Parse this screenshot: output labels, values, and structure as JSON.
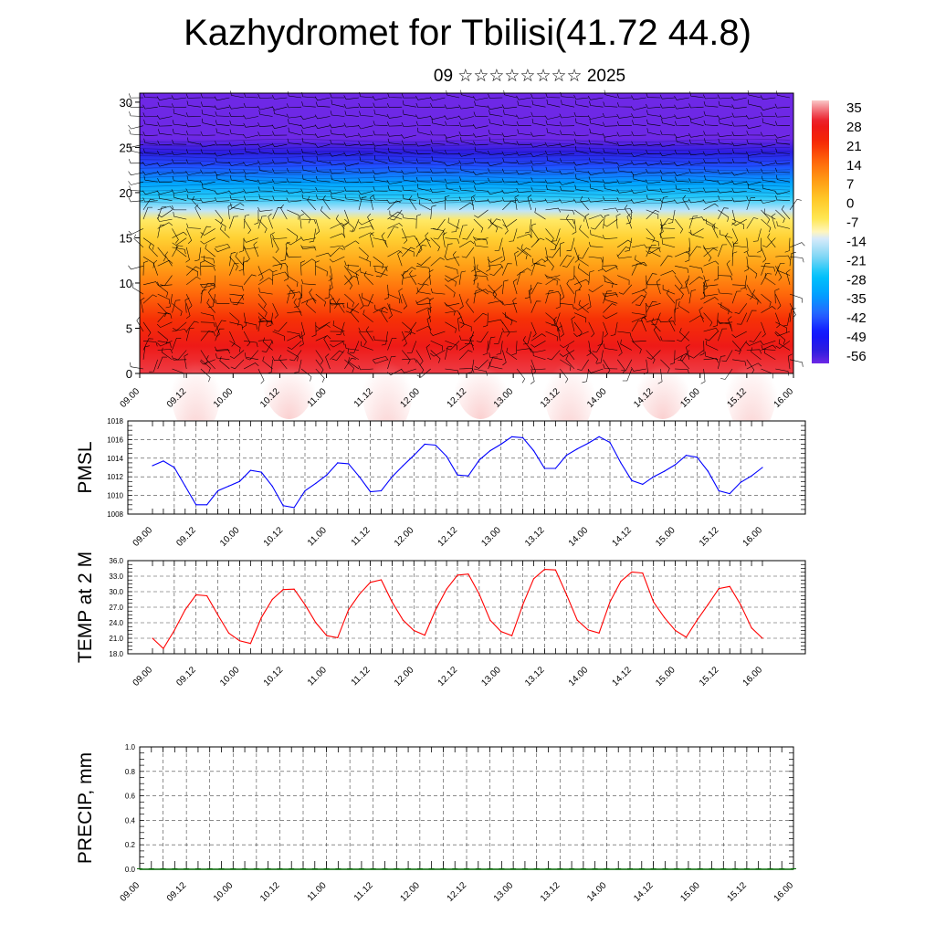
{
  "header": {
    "title": "Kazhydromet for Tbilisi(41.72 44.8)",
    "subtitle": "09 ☆☆☆☆☆☆☆☆ 2025"
  },
  "chart_data": [
    {
      "type": "heatmap",
      "title": "",
      "xlabel": "",
      "ylabel": "",
      "x_tick_labels": [
        "09.00",
        "09.12",
        "10.00",
        "10.12",
        "11.00",
        "11.12",
        "12.00",
        "12.12",
        "13.00",
        "13.12",
        "14.00",
        "14.12",
        "15.00",
        "15.12",
        "16.00"
      ],
      "y_ticks": [
        0,
        5,
        10,
        15,
        20,
        25,
        30
      ],
      "ylim": [
        0,
        31
      ],
      "colorbar_labels": [
        "35",
        "28",
        "21",
        "14",
        "7",
        "0",
        "-7",
        "-14",
        "-21",
        "-28",
        "-35",
        "-42",
        "-49",
        "-56"
      ],
      "colorbar_range": [
        -60,
        36
      ],
      "overlay": "wind barbs",
      "profile": [
        {
          "level": 0,
          "value": 30
        },
        {
          "level": 3,
          "value": 26
        },
        {
          "level": 6,
          "value": 20
        },
        {
          "level": 9,
          "value": 13
        },
        {
          "level": 12,
          "value": 6
        },
        {
          "level": 15,
          "value": -2
        },
        {
          "level": 17,
          "value": -8
        },
        {
          "level": 18,
          "value": -16
        },
        {
          "level": 19.5,
          "value": -26
        },
        {
          "level": 21,
          "value": -34
        },
        {
          "level": 23,
          "value": -44
        },
        {
          "level": 24.5,
          "value": -55
        },
        {
          "level": 26,
          "value": -60
        },
        {
          "level": 31,
          "value": -60
        }
      ]
    },
    {
      "type": "line",
      "title": "",
      "xlabel": "",
      "ylabel": "PMSL",
      "ylim": [
        1008,
        1018
      ],
      "y_tick_labels": [
        "1018",
        "1016",
        "1014",
        "1012",
        "1010",
        "1008"
      ],
      "x_tick_labels": [
        "09.00",
        "09.12",
        "10.00",
        "10.12",
        "11.00",
        "11.12",
        "12.00",
        "12.12",
        "13.00",
        "13.12",
        "14.00",
        "14.12",
        "15.00",
        "15.12",
        "16.00"
      ],
      "x": [
        0,
        3,
        6,
        9,
        12,
        15,
        18,
        21,
        24,
        27,
        30,
        33,
        36,
        39,
        42,
        45,
        48,
        51,
        54,
        57,
        60,
        63,
        66,
        69,
        72,
        75,
        78,
        81,
        84,
        87,
        90,
        93,
        96,
        99,
        102,
        105,
        108,
        111,
        114,
        117,
        120,
        123,
        126,
        129,
        132,
        135,
        138,
        141,
        144,
        147,
        150,
        153,
        156,
        159,
        162,
        165,
        168
      ],
      "series": [
        {
          "name": "",
          "color": "#0000ff",
          "values": [
            1013.2,
            1013.7,
            1013.0,
            1011.0,
            1009.0,
            1009.0,
            1010.5,
            1011.0,
            1011.5,
            1012.7,
            1012.5,
            1011.0,
            1008.9,
            1008.7,
            1010.5,
            1011.3,
            1012.2,
            1013.5,
            1013.4,
            1012.0,
            1010.4,
            1010.5,
            1012.0,
            1013.2,
            1014.3,
            1015.5,
            1015.4,
            1014.2,
            1012.2,
            1012.1,
            1013.8,
            1014.8,
            1015.5,
            1016.3,
            1016.2,
            1014.8,
            1012.9,
            1012.9,
            1014.3,
            1015.0,
            1015.6,
            1016.3,
            1015.7,
            1013.5,
            1011.6,
            1011.2,
            1012.0,
            1012.6,
            1013.3,
            1014.3,
            1014.1,
            1012.6,
            1010.5,
            1010.2,
            1011.4,
            1012.1,
            1013.0
          ]
        }
      ]
    },
    {
      "type": "line",
      "title": "",
      "xlabel": "",
      "ylabel": "TEMP at 2 M",
      "ylim": [
        18,
        36
      ],
      "y_tick_labels": [
        "36.0",
        "33.0",
        "30.0",
        "27.0",
        "24.0",
        "21.0",
        "18.0"
      ],
      "x_tick_labels": [
        "09.00",
        "09.12",
        "10.00",
        "10.12",
        "11.00",
        "11.12",
        "12.00",
        "12.12",
        "13.00",
        "13.12",
        "14.00",
        "14.12",
        "15.00",
        "15.12",
        "16.00"
      ],
      "x": [
        0,
        3,
        6,
        9,
        12,
        15,
        18,
        21,
        24,
        27,
        30,
        33,
        36,
        39,
        42,
        45,
        48,
        51,
        54,
        57,
        60,
        63,
        66,
        69,
        72,
        75,
        78,
        81,
        84,
        87,
        90,
        93,
        96,
        99,
        102,
        105,
        108,
        111,
        114,
        117,
        120,
        123,
        126,
        129,
        132,
        135,
        138,
        141,
        144,
        147,
        150,
        153,
        156,
        159,
        162,
        165,
        168
      ],
      "series": [
        {
          "name": "",
          "color": "#ff0000",
          "values": [
            21.0,
            19.0,
            22.5,
            26.5,
            29.4,
            29.2,
            25.5,
            22.0,
            20.5,
            20.0,
            25.0,
            28.5,
            30.4,
            30.5,
            27.5,
            24.0,
            21.5,
            21.1,
            26.5,
            29.5,
            31.8,
            32.3,
            28.0,
            24.5,
            22.5,
            21.6,
            26.5,
            30.5,
            33.2,
            33.4,
            29.5,
            24.5,
            22.3,
            21.5,
            27.5,
            32.5,
            34.3,
            34.2,
            29.5,
            24.5,
            22.6,
            22.0,
            28.0,
            32.0,
            33.8,
            33.6,
            28.0,
            25.0,
            22.5,
            21.2,
            24.5,
            27.5,
            30.6,
            31.0,
            27.5,
            23.0,
            21.0
          ]
        }
      ]
    },
    {
      "type": "bar",
      "title": "",
      "xlabel": "",
      "ylabel": "PRECIP, mm",
      "ylim": [
        0,
        1
      ],
      "y_tick_labels": [
        "1.0",
        "0.8",
        "0.6",
        "0.4",
        "0.2",
        "0.0"
      ],
      "x_tick_labels": [
        "09.00",
        "09.12",
        "10.00",
        "10.12",
        "11.00",
        "11.12",
        "12.00",
        "12.12",
        "13.00",
        "13.12",
        "14.00",
        "14.12",
        "15.00",
        "15.12",
        "16.00"
      ],
      "series": [
        {
          "name": "",
          "color": "#006400",
          "values": [
            0,
            0,
            0,
            0,
            0,
            0,
            0,
            0,
            0,
            0,
            0,
            0,
            0,
            0,
            0,
            0,
            0,
            0,
            0,
            0,
            0,
            0,
            0,
            0,
            0,
            0,
            0,
            0,
            0,
            0,
            0,
            0,
            0,
            0,
            0,
            0,
            0,
            0,
            0,
            0,
            0,
            0,
            0,
            0,
            0,
            0,
            0,
            0,
            0,
            0,
            0,
            0,
            0,
            0,
            0,
            0,
            0
          ]
        }
      ]
    }
  ]
}
